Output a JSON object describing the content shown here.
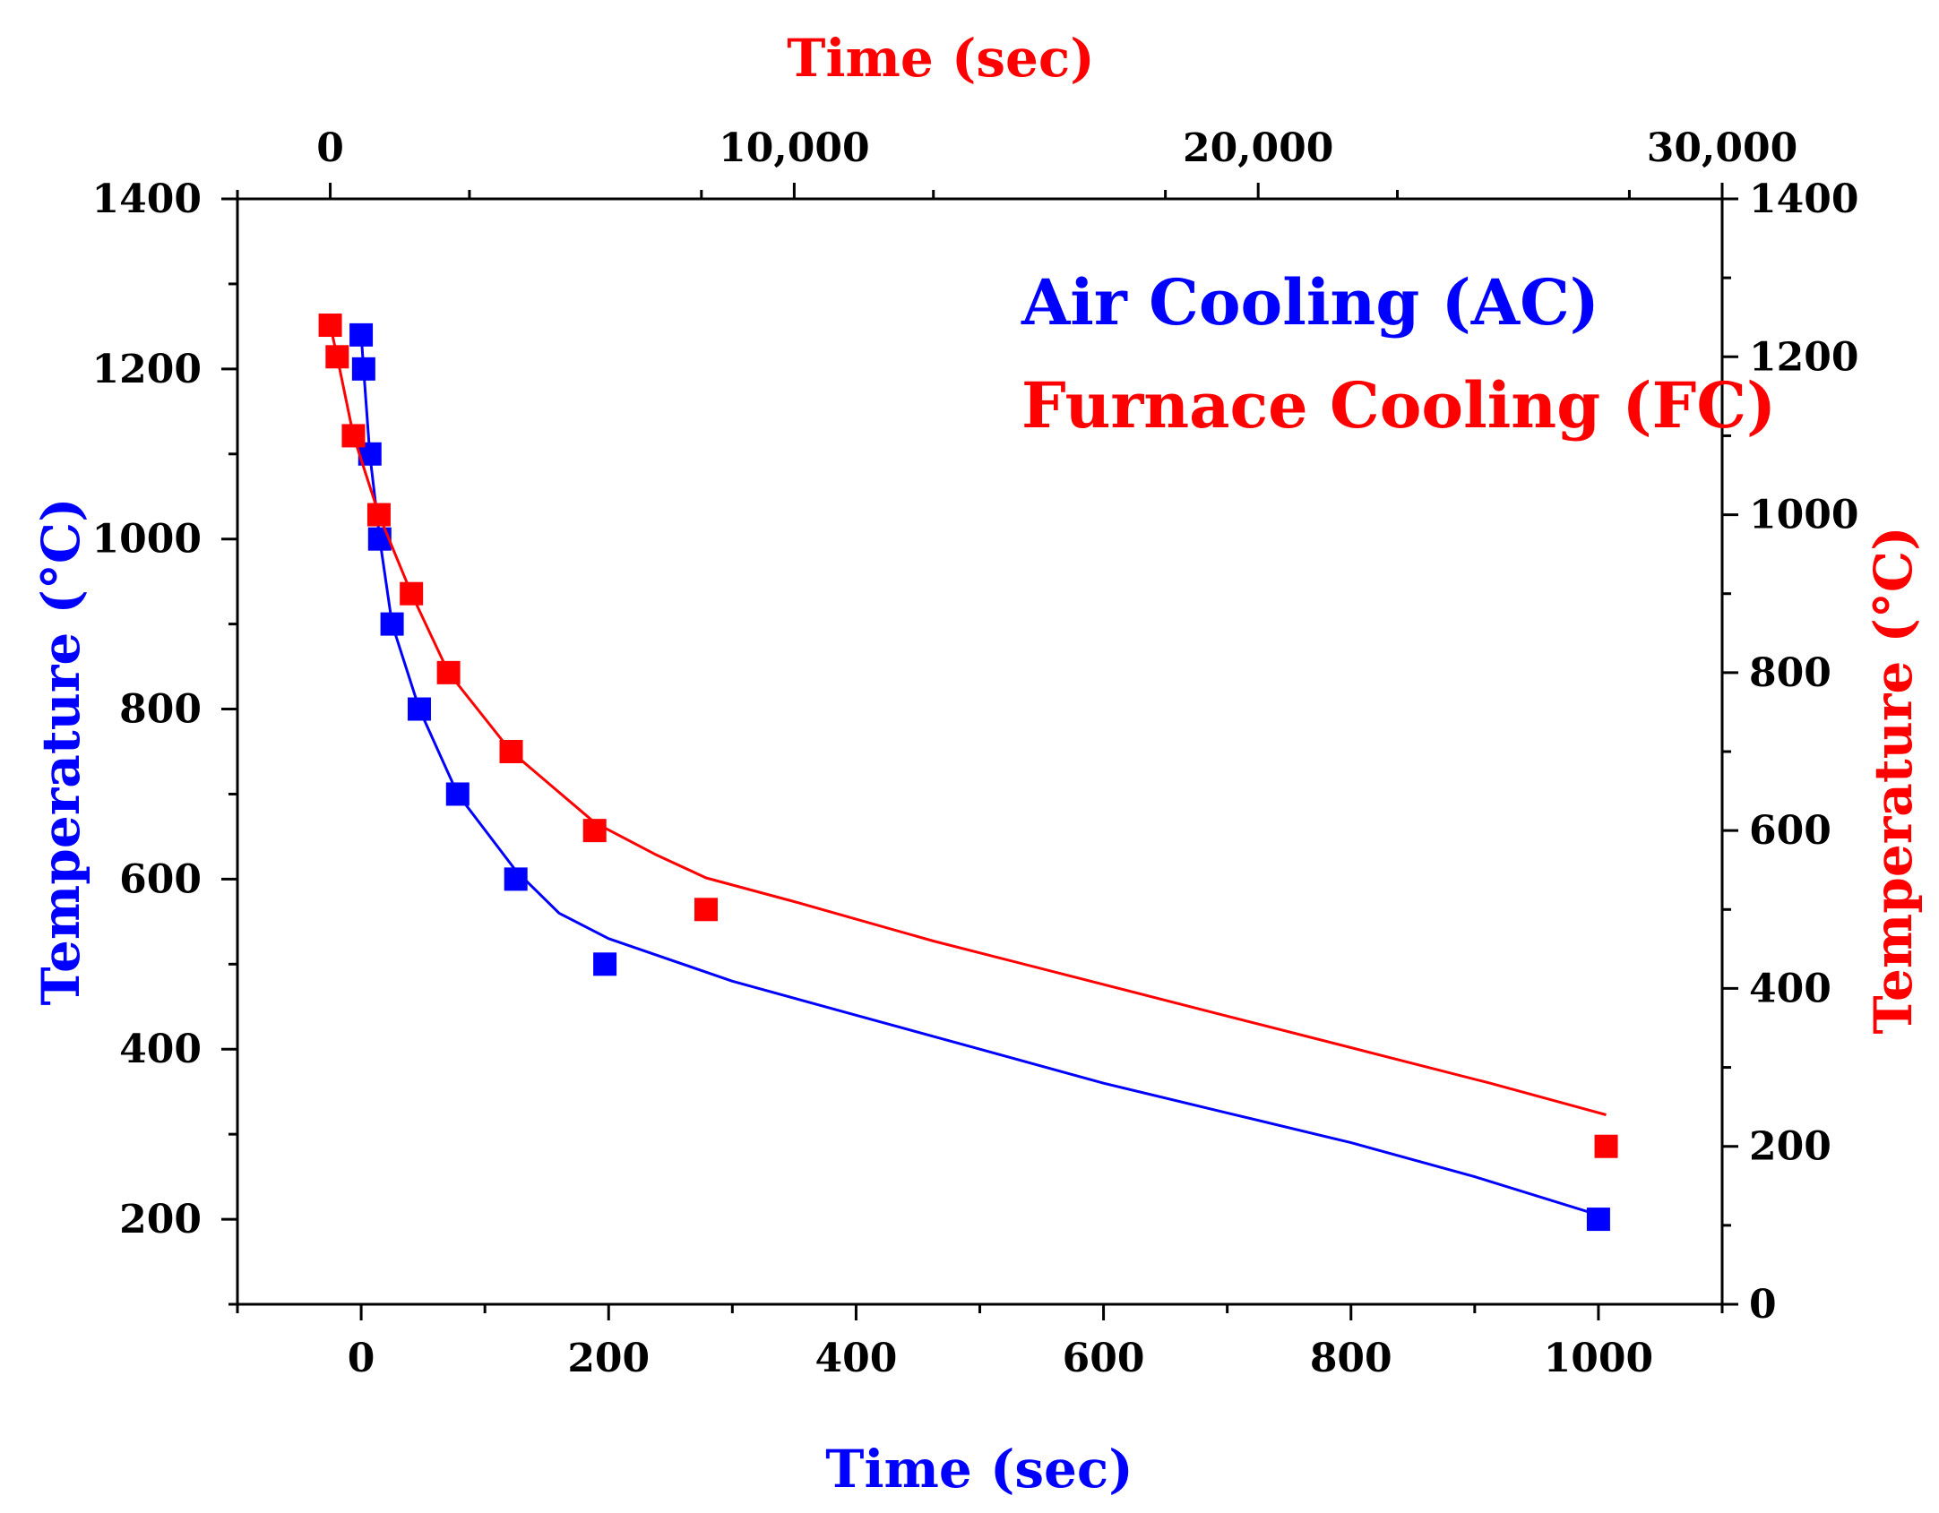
{
  "chart_data": {
    "type": "scatter",
    "title": "",
    "bottom_axis": {
      "label": "Time (sec)",
      "color": "#0000FF",
      "range": [
        -100,
        1100
      ],
      "ticks": [
        0,
        200,
        400,
        600,
        800,
        1000
      ],
      "tick_labels": [
        "0",
        "200",
        "400",
        "600",
        "800",
        "1000"
      ]
    },
    "top_axis": {
      "label": "Time (sec)",
      "color": "#FF0000",
      "range": [
        -2000,
        30000
      ],
      "ticks": [
        0,
        10000,
        20000,
        30000
      ],
      "tick_labels": [
        "0",
        "10,000",
        "20,000",
        "30,000"
      ]
    },
    "left_axis": {
      "label": "Temperature (°C)",
      "color": "#0000FF",
      "range": [
        100,
        1400
      ],
      "ticks": [
        200,
        400,
        600,
        800,
        1000,
        1200,
        1400
      ],
      "tick_labels": [
        "200",
        "400",
        "600",
        "800",
        "1000",
        "1200",
        "1400"
      ]
    },
    "right_axis": {
      "label": "Temperature (°C)",
      "color": "#FF0000",
      "range": [
        0,
        1400
      ],
      "ticks": [
        0,
        200,
        400,
        600,
        800,
        1000,
        1200,
        1400
      ],
      "tick_labels": [
        "0",
        "200",
        "400",
        "600",
        "800",
        "1000",
        "1200",
        "1400"
      ]
    },
    "legend_placement": "top-right",
    "series": [
      {
        "name": "Air Cooling (AC)",
        "color": "#0000FF",
        "axes": "bottom-left",
        "x": [
          0,
          2,
          7,
          15,
          25,
          47,
          78,
          125,
          197,
          1000
        ],
        "y": [
          1240,
          1200,
          1100,
          1000,
          900,
          800,
          700,
          600,
          500,
          200
        ],
        "fit_x": [
          0,
          2,
          7,
          15,
          25,
          47,
          78,
          125,
          160,
          200,
          300,
          400,
          500,
          600,
          700,
          800,
          900,
          1000
        ],
        "fit_y": [
          1240,
          1200,
          1100,
          1000,
          900,
          800,
          700,
          610,
          560,
          530,
          480,
          440,
          400,
          360,
          325,
          290,
          250,
          205
        ]
      },
      {
        "name": "Furnace Cooling (FC)",
        "color": "#FF0000",
        "axes": "top-right",
        "x": [
          0,
          150,
          500,
          1050,
          1750,
          2550,
          3900,
          5700,
          8100,
          27500
        ],
        "y": [
          1240,
          1200,
          1100,
          1000,
          900,
          800,
          700,
          600,
          500,
          200
        ],
        "fit_x": [
          0,
          150,
          500,
          1050,
          1750,
          2550,
          3900,
          5700,
          7000,
          8100,
          10000,
          13000,
          16000,
          19000,
          22000,
          25000,
          27500
        ],
        "fit_y": [
          1240,
          1200,
          1100,
          1000,
          900,
          800,
          700,
          610,
          570,
          540,
          510,
          460,
          415,
          370,
          325,
          280,
          240
        ]
      }
    ]
  }
}
